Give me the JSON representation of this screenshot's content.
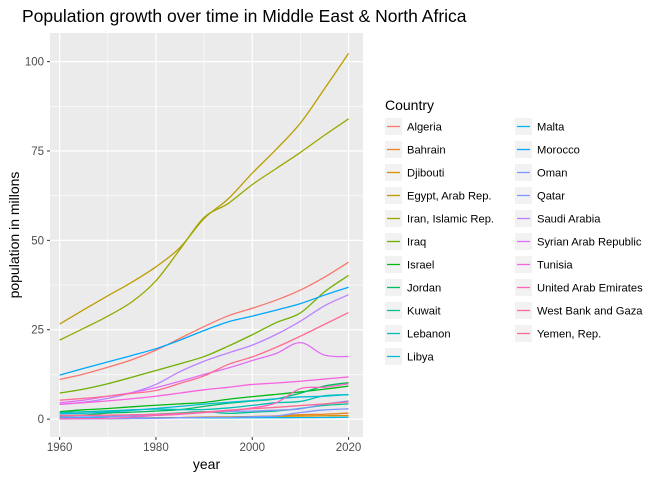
{
  "chart_data": {
    "type": "line",
    "title": "Population growth over time in Middle East & North Africa",
    "xlabel": "year",
    "ylabel": "population in millons",
    "xlim": [
      1958,
      2023
    ],
    "ylim": [
      -5,
      108
    ],
    "x_ticks": [
      1960,
      1980,
      2000,
      2020
    ],
    "y_ticks": [
      0,
      25,
      50,
      75,
      100
    ],
    "grid": true,
    "legend_title": "Country",
    "legend_position": "right",
    "x": [
      1960,
      1965,
      1970,
      1975,
      1980,
      1985,
      1990,
      1995,
      2000,
      2005,
      2010,
      2015,
      2020
    ],
    "series": [
      {
        "name": "Algeria",
        "color": "#F8766D",
        "values": [
          11.1,
          12.6,
          14.5,
          16.6,
          19.3,
          22.6,
          25.9,
          28.9,
          31.0,
          33.3,
          36.1,
          39.7,
          43.9
        ]
      },
      {
        "name": "Bahrain",
        "color": "#E9842C",
        "values": [
          0.16,
          0.19,
          0.21,
          0.27,
          0.36,
          0.42,
          0.5,
          0.57,
          0.71,
          0.9,
          1.24,
          1.37,
          1.7
        ]
      },
      {
        "name": "Djibouti",
        "color": "#D69100",
        "values": [
          0.08,
          0.11,
          0.16,
          0.2,
          0.36,
          0.43,
          0.59,
          0.64,
          0.72,
          0.78,
          0.85,
          0.94,
          0.99
        ]
      },
      {
        "name": "Egypt, Arab Rep.",
        "color": "#BC9D00",
        "values": [
          26.6,
          30.6,
          34.5,
          38.3,
          42.6,
          48.0,
          56.1,
          61.6,
          68.8,
          75.5,
          82.8,
          92.4,
          102.3
        ]
      },
      {
        "name": "Iran, Islamic Rep.",
        "color": "#9CA700",
        "values": [
          22.1,
          25.4,
          28.8,
          32.8,
          38.7,
          47.5,
          56.4,
          60.3,
          65.6,
          70.1,
          74.6,
          79.4,
          84.0
        ]
      },
      {
        "name": "Iraq",
        "color": "#6FB000",
        "values": [
          7.3,
          8.4,
          9.9,
          11.7,
          13.6,
          15.5,
          17.5,
          20.4,
          23.6,
          27.0,
          29.7,
          35.6,
          40.2
        ]
      },
      {
        "name": "Israel",
        "color": "#00B813",
        "values": [
          2.1,
          2.6,
          2.97,
          3.45,
          3.88,
          4.27,
          4.66,
          5.55,
          6.29,
          6.93,
          7.62,
          8.38,
          9.22
        ]
      },
      {
        "name": "Jordan",
        "color": "#00BD61",
        "values": [
          0.93,
          1.14,
          1.69,
          1.95,
          2.26,
          2.66,
          3.57,
          4.44,
          5.06,
          5.67,
          7.26,
          9.27,
          10.2
        ]
      },
      {
        "name": "Kuwait",
        "color": "#00C08E",
        "values": [
          0.27,
          0.47,
          0.75,
          1.06,
          1.38,
          1.72,
          2.09,
          1.61,
          1.93,
          2.27,
          2.99,
          3.84,
          4.27
        ]
      },
      {
        "name": "Lebanon",
        "color": "#00C0B4",
        "values": [
          1.8,
          2.07,
          2.3,
          2.6,
          2.8,
          2.68,
          2.7,
          3.13,
          3.84,
          4.59,
          4.95,
          6.53,
          6.83
        ]
      },
      {
        "name": "Libya",
        "color": "#00BDD4",
        "values": [
          1.45,
          1.65,
          2.0,
          2.45,
          3.0,
          3.56,
          4.2,
          4.7,
          5.17,
          5.68,
          6.2,
          6.42,
          6.87
        ]
      },
      {
        "name": "Malta",
        "color": "#00B5EE",
        "values": [
          0.31,
          0.31,
          0.3,
          0.31,
          0.32,
          0.34,
          0.36,
          0.37,
          0.39,
          0.4,
          0.41,
          0.45,
          0.52
        ]
      },
      {
        "name": "Morocco",
        "color": "#00A7FF",
        "values": [
          12.3,
          14.2,
          16.0,
          17.8,
          19.7,
          22.1,
          24.8,
          27.2,
          28.8,
          30.5,
          32.3,
          34.7,
          36.9
        ]
      },
      {
        "name": "Oman",
        "color": "#7F96FF",
        "values": [
          0.55,
          0.62,
          0.72,
          0.89,
          1.15,
          1.53,
          1.86,
          2.19,
          2.24,
          2.51,
          2.88,
          4.19,
          5.1
        ]
      },
      {
        "name": "Qatar",
        "color": "#7F96FF",
        "values": [
          0.05,
          0.08,
          0.12,
          0.17,
          0.23,
          0.37,
          0.48,
          0.5,
          0.65,
          0.87,
          1.86,
          2.57,
          2.88
        ]
      },
      {
        "name": "Saudi Arabia",
        "color": "#BC81FF",
        "values": [
          4.1,
          4.7,
          5.8,
          7.4,
          9.7,
          13.3,
          16.2,
          18.5,
          20.7,
          23.7,
          27.4,
          31.7,
          34.8
        ]
      },
      {
        "name": "Syrian Arab Republic",
        "color": "#E26EF7",
        "values": [
          4.6,
          5.3,
          6.4,
          7.4,
          8.8,
          10.6,
          12.5,
          14.3,
          16.4,
          18.4,
          21.4,
          17.9,
          17.5
        ]
      },
      {
        "name": "Tunisia",
        "color": "#F863DF",
        "values": [
          4.2,
          4.6,
          5.1,
          5.7,
          6.4,
          7.3,
          8.2,
          8.9,
          9.7,
          10.1,
          10.6,
          11.2,
          11.8
        ]
      },
      {
        "name": "United Arab Emirates",
        "color": "#FF62BF",
        "values": [
          0.09,
          0.15,
          0.23,
          0.55,
          1.01,
          1.35,
          1.83,
          2.35,
          3.13,
          4.59,
          8.55,
          8.92,
          9.89
        ]
      },
      {
        "name": "West Bank and Gaza",
        "color": "#FF6A98",
        "values": [
          1.0,
          1.05,
          1.1,
          1.2,
          1.35,
          1.55,
          1.98,
          2.5,
          2.92,
          3.3,
          3.79,
          4.27,
          4.8
        ]
      },
      {
        "name": "Yemen, Rep.",
        "color": "#FF6C91",
        "values": [
          5.3,
          5.8,
          6.4,
          7.2,
          8.0,
          10.0,
          12.1,
          15.3,
          17.4,
          20.1,
          23.2,
          26.5,
          29.8
        ]
      }
    ]
  }
}
